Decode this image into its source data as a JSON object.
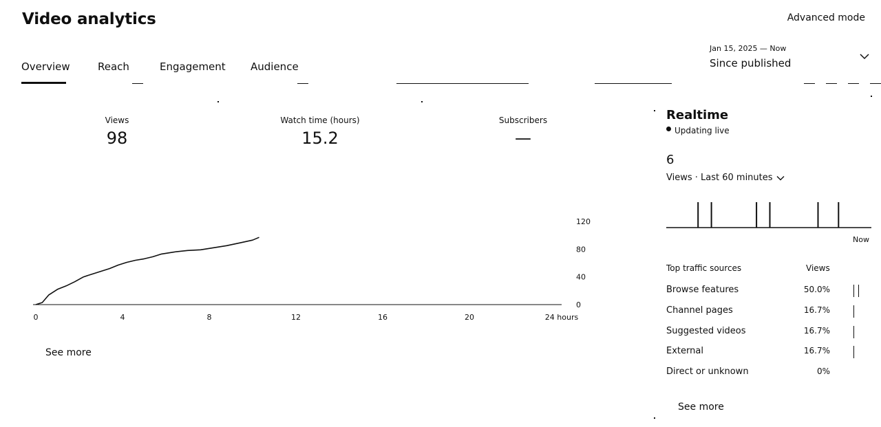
{
  "header": {
    "title": "Video analytics",
    "advanced_mode_label": "Advanced mode"
  },
  "tabs": [
    {
      "label": "Overview",
      "selected": true
    },
    {
      "label": "Reach",
      "selected": false
    },
    {
      "label": "Engagement",
      "selected": false
    },
    {
      "label": "Audience",
      "selected": false
    }
  ],
  "date_range": {
    "label": "Jan 15, 2025 — Now",
    "value": "Since published",
    "icon": "chevron-down-icon"
  },
  "metrics": [
    {
      "label": "Views",
      "value": "98"
    },
    {
      "label": "Watch time (hours)",
      "value": "15.2"
    },
    {
      "label": "Subscribers",
      "value": "—"
    }
  ],
  "chart_data": {
    "type": "line",
    "title": "",
    "xlabel": "",
    "ylabel": "",
    "x_ticks": [
      "0",
      "4",
      "8",
      "12",
      "16",
      "20",
      "24 hours"
    ],
    "y_ticks": [
      "0",
      "40",
      "80",
      "120"
    ],
    "xlim": [
      0,
      24
    ],
    "ylim": [
      0,
      120
    ],
    "grid": false,
    "series": [
      {
        "name": "",
        "x": [
          0,
          0.3,
          0.6,
          1.0,
          1.4,
          1.8,
          2.2,
          2.6,
          3.0,
          3.4,
          3.8,
          4.2,
          4.6,
          5.0,
          5.4,
          5.8,
          6.4,
          7.0,
          7.6,
          8.2,
          8.8,
          9.4,
          10.0,
          10.3
        ],
        "y": [
          0,
          3,
          14,
          22,
          27,
          33,
          40,
          44,
          48,
          52,
          57,
          61,
          64,
          66,
          69,
          73,
          76,
          78,
          79,
          82,
          85,
          89,
          93,
          97
        ]
      }
    ]
  },
  "see_more_left": "See more",
  "realtime": {
    "title": "Realtime",
    "live_label": "Updating live",
    "count": "6",
    "period_label": "Views · Last 60 minutes",
    "period_icon": "chevron-down-icon",
    "now_label": "Now",
    "spikes": [
      {
        "minute": 15.5,
        "value": 1
      },
      {
        "minute": 22,
        "value": 1
      },
      {
        "minute": 44,
        "value": 1
      },
      {
        "minute": 50.5,
        "value": 1
      },
      {
        "minute": 74,
        "value": 1
      },
      {
        "minute": 84,
        "value": 1
      }
    ]
  },
  "traffic_sources": {
    "header_source": "Top traffic sources",
    "header_views": "Views",
    "rows": [
      {
        "name": "Browse features",
        "pct": "50.0%",
        "fraction": 0.5
      },
      {
        "name": "Channel pages",
        "pct": "16.7%",
        "fraction": 0.167
      },
      {
        "name": "Suggested videos",
        "pct": "16.7%",
        "fraction": 0.167
      },
      {
        "name": "External",
        "pct": "16.7%",
        "fraction": 0.167
      },
      {
        "name": "Direct or unknown",
        "pct": "0%",
        "fraction": 0
      }
    ]
  },
  "see_more_right": "See more"
}
